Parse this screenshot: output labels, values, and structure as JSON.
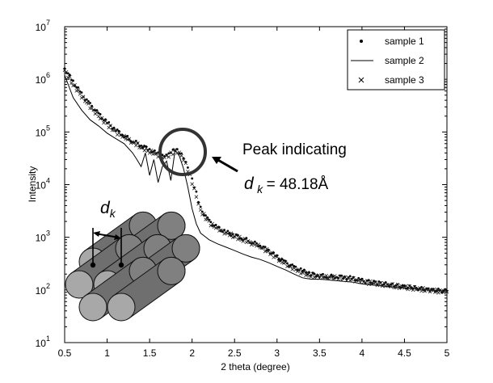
{
  "chart_data": {
    "type": "line",
    "title": "",
    "xlabel": "2 theta (degree)",
    "ylabel": "Intensity",
    "xlim": [
      0.5,
      5
    ],
    "ylim": [
      10,
      10000000
    ],
    "yscale": "log",
    "x_ticks": [
      "0.5",
      "1",
      "1.5",
      "2",
      "2.5",
      "3",
      "3.5",
      "4",
      "4.5",
      "5"
    ],
    "y_ticks": [
      {
        "base": "10",
        "exp": "1"
      },
      {
        "base": "10",
        "exp": "2"
      },
      {
        "base": "10",
        "exp": "3"
      },
      {
        "base": "10",
        "exp": "4"
      },
      {
        "base": "10",
        "exp": "5"
      },
      {
        "base": "10",
        "exp": "6"
      },
      {
        "base": "10",
        "exp": "7"
      }
    ],
    "grid": false,
    "legend_position": "top-right",
    "series": [
      {
        "name": "sample 1",
        "marker": "dot",
        "x": [
          0.5,
          0.6,
          0.7,
          0.8,
          0.9,
          1.0,
          1.1,
          1.2,
          1.3,
          1.4,
          1.5,
          1.6,
          1.65,
          1.7,
          1.75,
          1.8,
          1.85,
          1.9,
          1.95,
          2.0,
          2.05,
          2.1,
          2.2,
          2.3,
          2.4,
          2.5,
          2.6,
          2.7,
          2.8,
          2.9,
          3.0,
          3.1,
          3.2,
          3.3,
          3.4,
          3.5,
          3.6,
          3.7,
          3.8,
          3.9,
          4.0,
          4.2,
          4.4,
          4.6,
          4.8,
          5.0
        ],
        "y": [
          1600000,
          900000,
          520000,
          330000,
          220000,
          150000,
          110000,
          85000,
          68000,
          56000,
          46000,
          38000,
          34000,
          35000,
          40000,
          46000,
          42000,
          34000,
          22000,
          13000,
          7000,
          3500,
          2000,
          1500,
          1250,
          1100,
          950,
          820,
          700,
          560,
          420,
          330,
          270,
          230,
          200,
          190,
          180,
          180,
          175,
          165,
          150,
          135,
          120,
          110,
          100,
          95
        ]
      },
      {
        "name": "sample 2",
        "marker": "line",
        "x": [
          0.5,
          0.6,
          0.7,
          0.8,
          0.9,
          1.0,
          1.1,
          1.2,
          1.3,
          1.35,
          1.4,
          1.45,
          1.5,
          1.55,
          1.6,
          1.65,
          1.7,
          1.75,
          1.8,
          1.85,
          1.9,
          1.95,
          2.0,
          2.05,
          2.1,
          2.2,
          2.3,
          2.4,
          2.5,
          2.6,
          2.7,
          2.8,
          2.9,
          3.0,
          3.1,
          3.2,
          3.3,
          3.4,
          3.5,
          3.6,
          3.7,
          3.8,
          3.9,
          4.0,
          4.2,
          4.4,
          4.6,
          4.8,
          5.0
        ],
        "y": [
          1200000,
          450000,
          260000,
          170000,
          130000,
          95000,
          75000,
          60000,
          40000,
          30000,
          22000,
          40000,
          15000,
          30000,
          11000,
          22000,
          28000,
          12000,
          45000,
          35000,
          20000,
          9000,
          3500,
          1800,
          1200,
          900,
          750,
          650,
          560,
          480,
          420,
          380,
          330,
          280,
          240,
          200,
          170,
          160,
          160,
          155,
          150,
          145,
          140,
          130,
          120,
          112,
          105,
          100,
          95
        ]
      },
      {
        "name": "sample 3",
        "marker": "x",
        "x": [
          0.5,
          0.6,
          0.7,
          0.8,
          0.9,
          1.0,
          1.1,
          1.2,
          1.3,
          1.4,
          1.5,
          1.6,
          1.65,
          1.7,
          1.75,
          1.8,
          1.85,
          1.9,
          1.95,
          2.0,
          2.05,
          2.1,
          2.2,
          2.3,
          2.4,
          2.5,
          2.6,
          2.7,
          2.8,
          2.9,
          3.0,
          3.1,
          3.2,
          3.3,
          3.4,
          3.5,
          3.6,
          3.7,
          3.8,
          3.9,
          4.0,
          4.2,
          4.4,
          4.6,
          4.8,
          5.0
        ],
        "y": [
          1500000,
          800000,
          480000,
          300000,
          200000,
          140000,
          100000,
          80000,
          64000,
          52000,
          43000,
          36000,
          33000,
          34000,
          38000,
          43000,
          40000,
          30000,
          19000,
          11000,
          6000,
          3200,
          1900,
          1450,
          1200,
          1050,
          900,
          780,
          660,
          530,
          400,
          310,
          250,
          215,
          190,
          180,
          175,
          170,
          165,
          155,
          145,
          130,
          118,
          108,
          98,
          92
        ]
      }
    ],
    "annotations": {
      "peak_text": "Peak indicating",
      "d_symbol": "d",
      "d_subscript": "k",
      "d_value": "= 48.18Å",
      "inset_d": "d",
      "inset_sub": "k"
    }
  }
}
